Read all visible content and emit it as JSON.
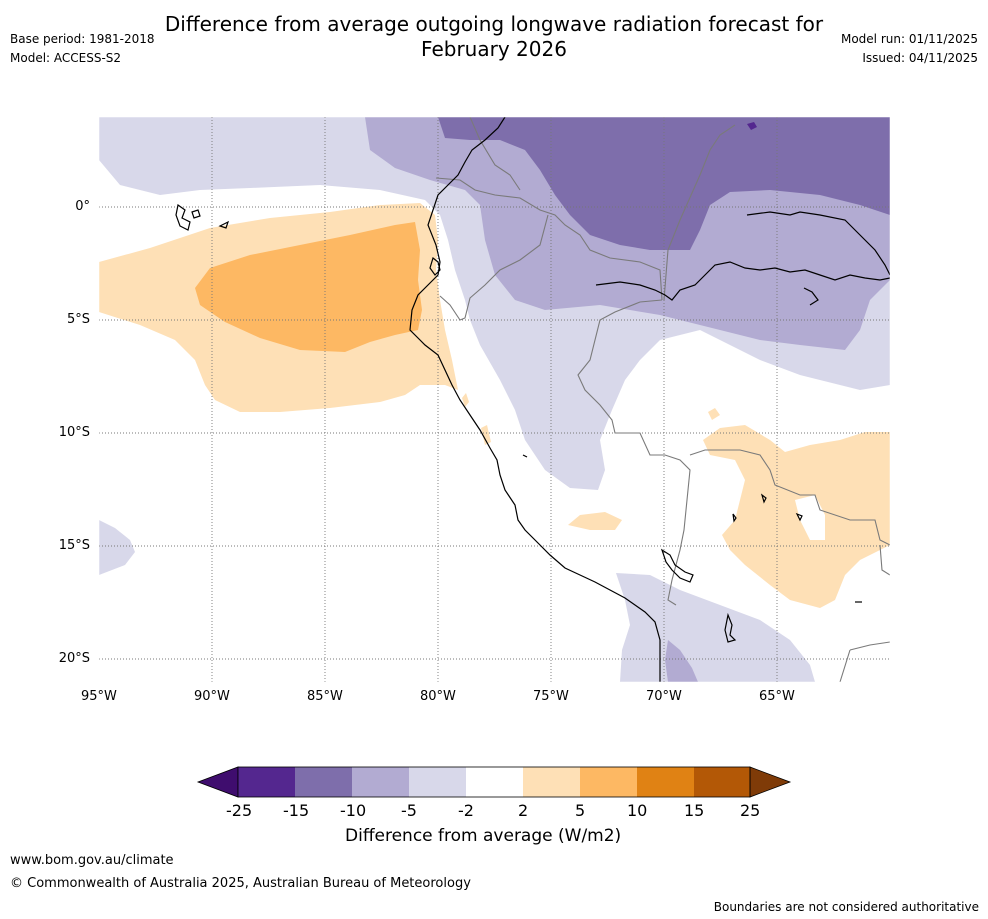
{
  "header": {
    "title_line1": "Difference from average outgoing longwave radiation forecast for",
    "title_line2": "February 2026",
    "base_period": "Base period: 1981-2018",
    "model": "Model: ACCESS-S2",
    "model_run": "Model run: 01/11/2025",
    "issued": "Issued: 04/11/2025"
  },
  "map": {
    "region": "Western South America and eastern Pacific",
    "lon_range": [
      -95,
      -60
    ],
    "lat_range": [
      -21,
      4
    ],
    "lon_labels": [
      "95°W",
      "90°W",
      "85°W",
      "80°W",
      "75°W",
      "70°W",
      "65°W"
    ],
    "lat_labels": [
      "0°",
      "5°S",
      "10°S",
      "15°S",
      "20°S"
    ]
  },
  "colorbar": {
    "label": "Difference from average (W/m2)",
    "ticks": [
      "-25",
      "-15",
      "-10",
      "-5",
      "-2",
      "2",
      "5",
      "10",
      "15",
      "25"
    ],
    "colors": [
      "#3f0d6e",
      "#54278f",
      "#7e6eab",
      "#b2abd2",
      "#d8d8ea",
      "#ffffff",
      "#fee0b6",
      "#fdb863",
      "#e08214",
      "#b35806",
      "#7f3b08"
    ]
  },
  "footer": {
    "url": "www.bom.gov.au/climate",
    "copyright": "© Commonwealth of Australia 2025, Australian Bureau of Meteorology",
    "disclaimer": "Boundaries are not considered authoritative"
  }
}
